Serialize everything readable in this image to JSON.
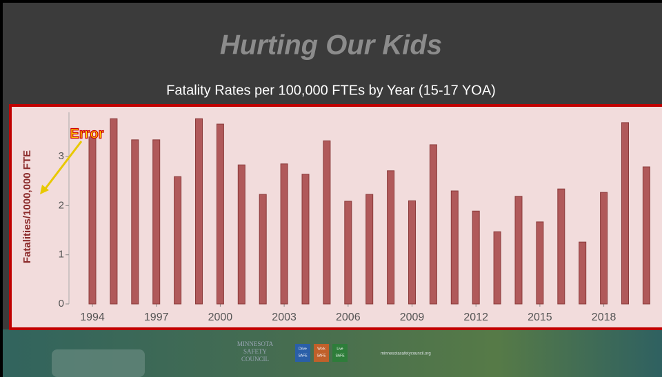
{
  "chart_data": {
    "type": "bar",
    "title": "Hurting Our Kids",
    "subtitle": "Fatality Rates per 100,000 FTEs by Year (15-17 YOA)",
    "y_label": "Fatalities/1000,000 FTE",
    "annotations": [
      "Error"
    ],
    "categories": [
      "1994",
      null,
      null,
      "1997",
      null,
      null,
      "2000",
      null,
      null,
      "2003",
      null,
      null,
      "2006",
      null,
      null,
      "2009",
      null,
      null,
      "2012",
      null,
      null,
      "2015",
      null,
      null,
      "2018",
      null,
      null
    ],
    "values": [
      3.4,
      3.77,
      3.34,
      3.34,
      2.59,
      3.77,
      3.66,
      2.83,
      2.23,
      2.85,
      2.64,
      3.32,
      2.09,
      2.23,
      2.71,
      2.1,
      3.24,
      2.3,
      1.89,
      1.47,
      2.19,
      1.67,
      2.34,
      1.26,
      2.27,
      3.69,
      2.79
    ],
    "color": "#b0595a",
    "ylim": [
      0,
      3.9
    ],
    "yticks": [
      0,
      1,
      2,
      3
    ],
    "grid": false
  },
  "footer": {
    "org": [
      "MINNESOTA",
      "SAFETY",
      "COUNCIL"
    ],
    "badges": [
      [
        "Drive",
        "SAFE"
      ],
      [
        "Work",
        "SAFE"
      ],
      [
        "Live",
        "SAFE"
      ]
    ],
    "url": "minnesotasafetycouncil.org"
  }
}
